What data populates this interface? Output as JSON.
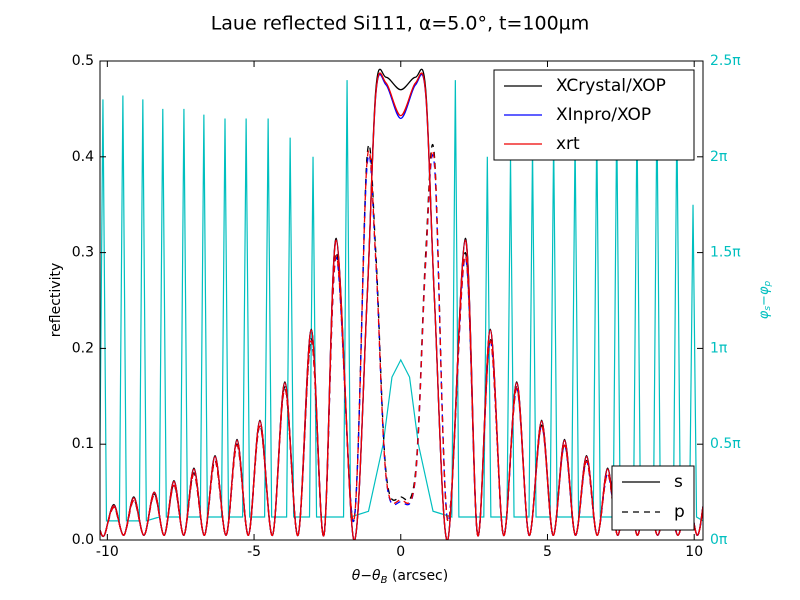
{
  "chart_data": {
    "type": "line",
    "title": "Laue reflected Si111, α=5.0°, t=100µm",
    "xlabel": [
      "θ−θ",
      "B",
      " (arcsec)"
    ],
    "ylabel": "reflectivity",
    "y2label": [
      "φ",
      "s",
      "−φ",
      "p"
    ],
    "xlim": [
      -10.25,
      10.3
    ],
    "xticks": [
      -10,
      -5,
      0,
      5,
      10
    ],
    "ylim": [
      0,
      0.5
    ],
    "yticks": [
      {
        "value": 0,
        "label": "0.0"
      },
      0.1,
      0.2,
      0.3,
      0.4,
      0.5
    ],
    "y2lim": [
      0,
      2.5
    ],
    "y2ticks": [
      {
        "value": 0,
        "label": "0π"
      },
      {
        "value": 0.5,
        "label": "0.5π"
      },
      {
        "value": 1,
        "label": "1π"
      },
      {
        "value": 1.5,
        "label": "1.5π"
      },
      {
        "value": 2,
        "label": "2π"
      },
      {
        "value": 2.5,
        "label": "2.5π"
      }
    ],
    "y2color": "#00bfbf",
    "legend": "upper right",
    "style_legend": "lower right",
    "styles": [
      {
        "name": "s",
        "dash": "none"
      },
      {
        "name": "p",
        "dash": "6,5"
      }
    ],
    "x": [
      -10.25,
      -10.1,
      -9.78,
      -9.44,
      -9.1,
      -8.75,
      -8.4,
      -8.06,
      -7.73,
      -7.39,
      -7.05,
      -6.69,
      -6.33,
      -5.95,
      -5.58,
      -5.19,
      -4.8,
      -4.37,
      -3.95,
      -3.5,
      -3.05,
      -2.62,
      -2.2,
      -1.6,
      -1.15,
      -0.85,
      -0.5,
      0,
      0.5,
      0.85,
      1.15,
      1.6,
      2.2,
      2.62,
      3.05,
      3.5,
      3.95,
      4.37,
      4.8,
      5.19,
      5.58,
      5.95,
      6.33,
      6.69,
      7.05,
      7.39,
      7.73,
      8.06,
      8.4,
      8.75,
      9.1,
      9.44,
      9.78,
      10.1,
      10.3
    ],
    "series": [
      {
        "name": "XCrystal/XOP",
        "color": "#000000",
        "values": [
          [
            0.01,
            0.005,
            0.037,
            0.005,
            0.045,
            0.005,
            0.05,
            0.005,
            0.062,
            0.005,
            0.075,
            0.005,
            0.088,
            0.005,
            0.105,
            0.005,
            0.125,
            0.005,
            0.165,
            0.005,
            0.22,
            0.005,
            0.315,
            0.0,
            0.25,
            0.47,
            0.483,
            0.47,
            0.483,
            0.47,
            0.25,
            0.0,
            0.315,
            0.005,
            0.22,
            0.005,
            0.165,
            0.005,
            0.125,
            0.005,
            0.105,
            0.005,
            0.088,
            0.005,
            0.075,
            0.005,
            0.065,
            0.005,
            0.055,
            0.005,
            0.05,
            0.005,
            0.045,
            0.005,
            0.035
          ],
          [
            0.01,
            0.005,
            0.035,
            0.005,
            0.042,
            0.005,
            0.048,
            0.005,
            0.058,
            0.005,
            0.07,
            0.005,
            0.083,
            0.005,
            0.1,
            0.005,
            0.12,
            0.005,
            0.16,
            0.005,
            0.21,
            0.005,
            0.3,
            0.02,
            0.4,
            0.3,
            0.07,
            0.045,
            0.07,
            0.3,
            0.4,
            0.02,
            0.3,
            0.005,
            0.21,
            0.005,
            0.16,
            0.005,
            0.12,
            0.005,
            0.1,
            0.005,
            0.083,
            0.005,
            0.07,
            0.005,
            0.06,
            0.005,
            0.052,
            0.005,
            0.047,
            0.005,
            0.042,
            0.005,
            0.033
          ]
        ]
      },
      {
        "name": "XInpro/XOP",
        "color": "#0000ff",
        "values": [
          [
            0.01,
            0.005,
            0.036,
            0.005,
            0.044,
            0.005,
            0.05,
            0.005,
            0.061,
            0.005,
            0.074,
            0.005,
            0.087,
            0.005,
            0.104,
            0.005,
            0.124,
            0.005,
            0.164,
            0.005,
            0.219,
            0.005,
            0.313,
            0.0,
            0.25,
            0.465,
            0.475,
            0.44,
            0.475,
            0.465,
            0.25,
            0.0,
            0.313,
            0.005,
            0.219,
            0.005,
            0.164,
            0.005,
            0.124,
            0.005,
            0.104,
            0.005,
            0.087,
            0.005,
            0.074,
            0.005,
            0.064,
            0.005,
            0.054,
            0.005,
            0.05,
            0.005,
            0.044,
            0.005,
            0.035
          ],
          [
            0.01,
            0.005,
            0.034,
            0.005,
            0.041,
            0.005,
            0.047,
            0.005,
            0.057,
            0.005,
            0.069,
            0.005,
            0.082,
            0.005,
            0.099,
            0.005,
            0.119,
            0.005,
            0.158,
            0.005,
            0.208,
            0.005,
            0.295,
            0.02,
            0.39,
            0.29,
            0.065,
            0.04,
            0.065,
            0.29,
            0.39,
            0.02,
            0.295,
            0.005,
            0.208,
            0.005,
            0.158,
            0.005,
            0.119,
            0.005,
            0.099,
            0.005,
            0.082,
            0.005,
            0.069,
            0.005,
            0.059,
            0.005,
            0.051,
            0.005,
            0.046,
            0.005,
            0.041,
            0.005,
            0.032
          ]
        ]
      },
      {
        "name": "xrt",
        "color": "#ee0000",
        "values": [
          [
            0.01,
            0.005,
            0.036,
            0.005,
            0.044,
            0.005,
            0.05,
            0.005,
            0.061,
            0.005,
            0.074,
            0.005,
            0.087,
            0.005,
            0.104,
            0.005,
            0.124,
            0.005,
            0.164,
            0.005,
            0.219,
            0.005,
            0.313,
            0.0,
            0.25,
            0.466,
            0.477,
            0.443,
            0.477,
            0.466,
            0.25,
            0.0,
            0.313,
            0.005,
            0.219,
            0.005,
            0.164,
            0.005,
            0.124,
            0.005,
            0.104,
            0.005,
            0.087,
            0.005,
            0.074,
            0.005,
            0.064,
            0.005,
            0.054,
            0.005,
            0.05,
            0.005,
            0.044,
            0.005,
            0.035
          ],
          [
            0.01,
            0.005,
            0.034,
            0.005,
            0.041,
            0.005,
            0.047,
            0.005,
            0.057,
            0.005,
            0.069,
            0.005,
            0.082,
            0.005,
            0.099,
            0.005,
            0.119,
            0.005,
            0.158,
            0.005,
            0.208,
            0.005,
            0.297,
            0.02,
            0.395,
            0.292,
            0.066,
            0.042,
            0.066,
            0.292,
            0.395,
            0.02,
            0.297,
            0.005,
            0.208,
            0.005,
            0.158,
            0.005,
            0.119,
            0.005,
            0.099,
            0.005,
            0.082,
            0.005,
            0.069,
            0.005,
            0.059,
            0.005,
            0.051,
            0.005,
            0.046,
            0.005,
            0.041,
            0.005,
            0.032
          ]
        ]
      }
    ],
    "phase": {
      "axis": "y2",
      "color": "#00bfbf",
      "x": [
        -10.25,
        -10.15,
        -10.03,
        -9.59,
        -9.47,
        -9.35,
        -8.91,
        -8.79,
        -8.67,
        -8.23,
        -8.11,
        -7.99,
        -7.51,
        -7.39,
        -7.27,
        -6.83,
        -6.71,
        -6.59,
        -6.11,
        -5.99,
        -5.87,
        -5.39,
        -5.27,
        -5.15,
        -4.64,
        -4.52,
        -4.4,
        -3.89,
        -3.77,
        -3.65,
        -3.11,
        -2.99,
        -2.87,
        -1.95,
        -1.83,
        -1.71,
        -1.1,
        -0.6,
        -0.3,
        0,
        0.3,
        0.6,
        1.1,
        1.74,
        1.86,
        1.98,
        2.83,
        2.95,
        3.07,
        3.62,
        3.74,
        3.86,
        4.37,
        4.49,
        4.61,
        5.09,
        5.21,
        5.33,
        5.82,
        5.94,
        6.06,
        6.56,
        6.68,
        6.8,
        7.24,
        7.36,
        7.48,
        7.93,
        8.05,
        8.17,
        8.61,
        8.73,
        8.85,
        9.29,
        9.41,
        9.53,
        9.84,
        9.96,
        10.08,
        10.3
      ],
      "values": [
        0.5,
        2.3,
        0.1,
        0.1,
        2.32,
        0.1,
        0.1,
        2.3,
        0.1,
        0.12,
        2.25,
        0.12,
        0.12,
        2.25,
        0.12,
        0.12,
        2.22,
        0.12,
        0.12,
        2.2,
        0.12,
        0.12,
        2.2,
        0.12,
        0.12,
        2.2,
        0.12,
        0.12,
        2.1,
        0.12,
        0.12,
        2.0,
        0.12,
        0.12,
        2.4,
        0.12,
        0.15,
        0.5,
        0.85,
        0.94,
        0.85,
        0.5,
        0.15,
        0.12,
        2.4,
        0.12,
        0.12,
        2.0,
        0.12,
        0.12,
        2.0,
        0.12,
        0.12,
        2.05,
        0.12,
        0.12,
        2.1,
        0.12,
        0.12,
        2.1,
        0.12,
        0.12,
        2.15,
        0.12,
        0.12,
        2.2,
        0.12,
        0.12,
        2.2,
        0.12,
        0.12,
        2.25,
        0.12,
        0.12,
        2.2,
        0.12,
        0.12,
        1.75,
        0.12,
        0.1
      ]
    }
  }
}
